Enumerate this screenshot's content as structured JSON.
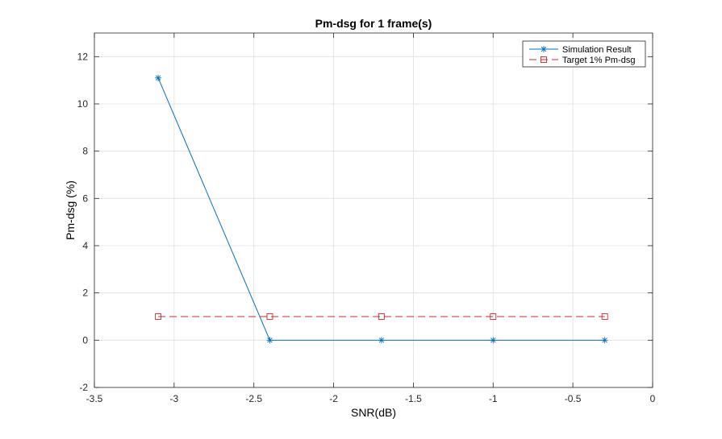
{
  "chart_data": {
    "type": "line",
    "title": "Pm-dsg for 1 frame(s)",
    "xlabel": "SNR(dB)",
    "ylabel": "Pm-dsg (%)",
    "xlim": [
      -3.5,
      0
    ],
    "ylim": [
      -2,
      13
    ],
    "xticks": [
      -3.5,
      -3,
      -2.5,
      -2,
      -1.5,
      -1,
      -0.5,
      0
    ],
    "xtick_labels": [
      "-3.5",
      "-3",
      "-2.5",
      "-2",
      "-1.5",
      "-1",
      "-0.5",
      "0"
    ],
    "yticks": [
      -2,
      0,
      2,
      4,
      6,
      8,
      10,
      12
    ],
    "ytick_labels": [
      "-2",
      "0",
      "2",
      "4",
      "6",
      "8",
      "10",
      "12"
    ],
    "grid": true,
    "legend_position": "top-right",
    "x": [
      -3.1,
      -2.4,
      -1.7,
      -1.0,
      -0.3
    ],
    "series": [
      {
        "name": "Simulation Result",
        "values": [
          11.1,
          0,
          0,
          0,
          0
        ],
        "color": "#0072bd",
        "line_style": "solid",
        "marker": "asterisk"
      },
      {
        "name": "Target 1% Pm-dsg",
        "values": [
          1,
          1,
          1,
          1,
          1
        ],
        "color": "#d62728",
        "line_style": "dashed",
        "marker": "square"
      }
    ]
  }
}
